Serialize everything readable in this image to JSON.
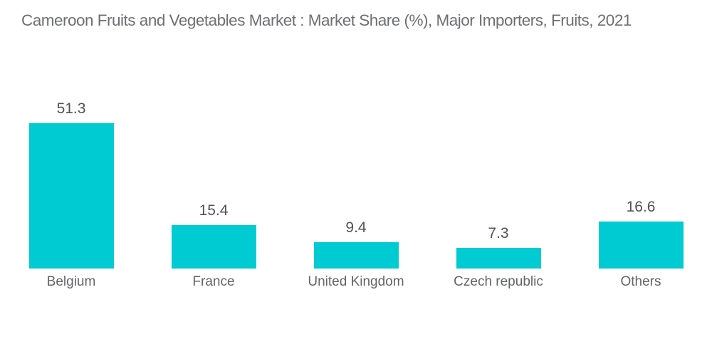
{
  "header": {
    "title": "Cameroon Fruits and Vegetables Market : Market Share (%), Major Importers, Fruits, 2021"
  },
  "chart_data": {
    "type": "bar",
    "title": "Cameroon Fruits and Vegetables Market : Market Share (%), Major Importers, Fruits, 2021",
    "categories": [
      "Belgium",
      "France",
      "United Kingdom",
      "Czech republic",
      "Others"
    ],
    "values": [
      51.3,
      15.4,
      9.4,
      7.3,
      16.6
    ],
    "value_labels": [
      "51.3",
      "15.4",
      "9.4",
      "7.3",
      "16.6"
    ],
    "xlabel": "",
    "ylabel": "",
    "ylim": [
      0,
      55
    ],
    "grid": false,
    "axes_visible": false,
    "legend_position": "none",
    "bar_color": "#00CBD2"
  },
  "colors": {
    "background": "#ffffff",
    "bar": "#00CBD2",
    "title_text": "#6e6f72",
    "value_text": "#515255",
    "category_text": "#636467"
  }
}
